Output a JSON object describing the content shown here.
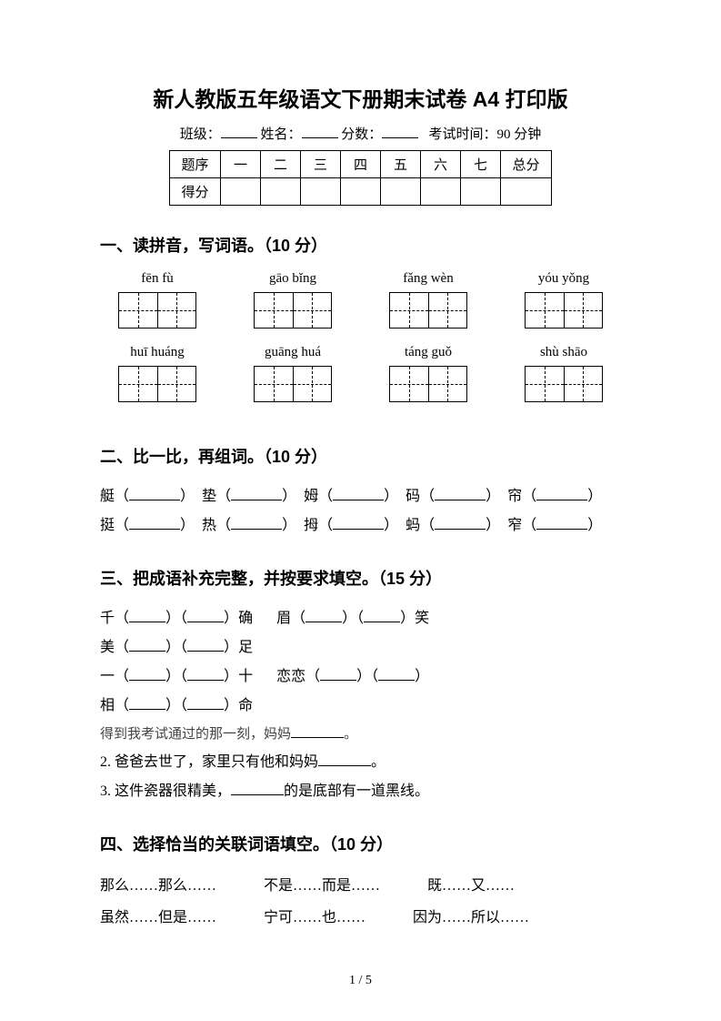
{
  "title": "新人教版五年级语文下册期末试卷 A4 打印版",
  "meta": {
    "class_label": "班级：",
    "name_label": "姓名：",
    "score_label": "分数：",
    "time_label": "考试时间：90 分钟"
  },
  "score_table": {
    "row1_label": "题序",
    "cols": [
      "一",
      "二",
      "三",
      "四",
      "五",
      "六",
      "七"
    ],
    "total": "总分",
    "row2_label": "得分"
  },
  "s1": {
    "heading": "一、读拼音，写词语。（10 分）",
    "row1": [
      "fēn fù",
      "gāo bǐng",
      "fǎng wèn",
      "yóu yǒng"
    ],
    "row2": [
      "huī huáng",
      "guāng huá",
      "táng guǒ",
      "shù shāo"
    ]
  },
  "s2": {
    "heading": "二、比一比，再组词。（10 分）",
    "pairs_row1": [
      "艇",
      "垫",
      "姆",
      "码",
      "帘"
    ],
    "pairs_row2": [
      "挺",
      "热",
      "拇",
      "蚂",
      "窄"
    ]
  },
  "s3": {
    "heading": "三、把成语补充完整，并按要求填空。（15 分）",
    "row1": [
      {
        "a": "千",
        "b": "确"
      },
      {
        "a": "眉",
        "b": "笑"
      },
      {
        "a": "美",
        "b": "足"
      }
    ],
    "row2": [
      {
        "a": "一",
        "b": "十"
      },
      {
        "a": "恋恋",
        "b": ""
      },
      {
        "a": "相",
        "b": "命"
      }
    ],
    "line_gray": "得到我考试通过的那一刻，妈妈",
    "line_gray_end": "。",
    "line2_a": "2. 爸爸去世了，家里只有他和妈妈",
    "line2_b": "。",
    "line3_a": "3. 这件瓷器很精美，",
    "line3_b": "的是底部有一道黑线。"
  },
  "s4": {
    "heading": "四、选择恰当的关联词语填空。（10 分）",
    "row1": [
      "那么……那么……",
      "不是……而是……",
      "既……又……"
    ],
    "row2": [
      "虽然……但是……",
      "宁可……也……",
      "因为……所以……"
    ]
  },
  "footer": "1 / 5",
  "colors": {
    "text": "#000000",
    "bg": "#ffffff",
    "gray": "#444444"
  },
  "typography": {
    "title_fontsize": 23,
    "heading_fontsize": 18,
    "body_fontsize": 16
  }
}
